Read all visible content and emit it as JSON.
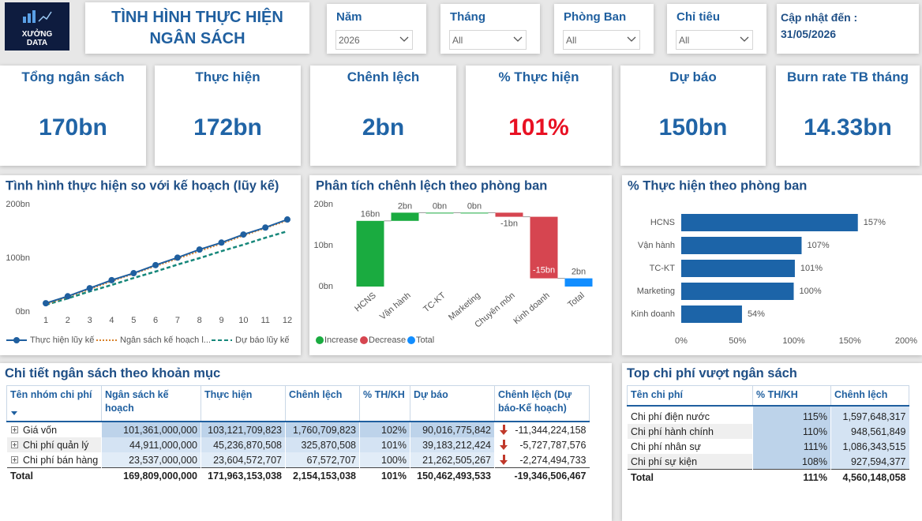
{
  "header": {
    "logo": "XƯỞNG DATA",
    "title": "TÌNH HÌNH THỰC HIỆN NGÂN SÁCH"
  },
  "filters": [
    {
      "label": "Năm",
      "value": "2026"
    },
    {
      "label": "Tháng",
      "value": "All"
    },
    {
      "label": "Phòng Ban",
      "value": "All"
    },
    {
      "label": "Chỉ tiêu",
      "value": "All"
    }
  ],
  "update": {
    "label": "Cập nhật đến :",
    "value": "31/05/2026"
  },
  "kpis": [
    {
      "label": "Tổng ngân sách",
      "value": "170bn",
      "color": "#2064a6"
    },
    {
      "label": "Thực hiện",
      "value": "172bn",
      "color": "#2064a6"
    },
    {
      "label": "Chênh lệch",
      "value": "2bn",
      "color": "#2064a6"
    },
    {
      "label": "% Thực hiện",
      "value": "101%",
      "color": "#e81123"
    },
    {
      "label": "Dự báo",
      "value": "150bn",
      "color": "#2064a6"
    },
    {
      "label": "Burn rate TB tháng",
      "value": "14.33bn",
      "color": "#2064a6"
    }
  ],
  "chart_data": [
    {
      "type": "line",
      "title": "Tình hình thực hiện so với kế hoạch (lũy kế)",
      "x": [
        1,
        2,
        3,
        4,
        5,
        6,
        7,
        8,
        9,
        10,
        11,
        12
      ],
      "xlim": [
        1,
        12
      ],
      "xticks": [
        1,
        2,
        3,
        4,
        5,
        6,
        7,
        8,
        9,
        10,
        11,
        12
      ],
      "ylim": [
        0,
        200
      ],
      "yticks": [
        {
          "value": 0,
          "label": "0bn"
        },
        {
          "value": 100,
          "label": "100bn"
        },
        {
          "value": 200,
          "label": "200bn"
        }
      ],
      "series": [
        {
          "name": "Thực hiện lũy kế",
          "color": "#1f5f9f",
          "line_style": "solid",
          "markers": true,
          "values": [
            16,
            29,
            44,
            59,
            72,
            87,
            101,
            116,
            129,
            144,
            157,
            172
          ]
        },
        {
          "name": "Ngân sách kế hoạch l...",
          "color": "#d9822b",
          "line_style": "dotted",
          "markers": false,
          "values": [
            14,
            28,
            42,
            57,
            71,
            85,
            99,
            113,
            127,
            142,
            156,
            170
          ]
        },
        {
          "name": "Dự báo lũy kế",
          "color": "#16877a",
          "line_style": "dashed",
          "markers": false,
          "values": [
            13,
            25,
            38,
            50,
            63,
            75,
            88,
            100,
            113,
            125,
            138,
            150
          ]
        }
      ]
    },
    {
      "type": "waterfall",
      "title": "Phân tích chênh lệch theo phòng ban",
      "categories": [
        "HCNS",
        "Vận hành",
        "TC-KT",
        "Marketing",
        "Chuyên môn",
        "Kinh doanh",
        "Total"
      ],
      "values": [
        16,
        2,
        0,
        0,
        -1,
        -15,
        2
      ],
      "value_labels": [
        "16bn",
        "2bn",
        "0bn",
        "0bn",
        "-1bn",
        "-15bn",
        "2bn"
      ],
      "ylim": [
        0,
        20
      ],
      "yticks": [
        {
          "value": 0,
          "label": "0bn"
        },
        {
          "value": 10,
          "label": "10bn"
        },
        {
          "value": 20,
          "label": "20bn"
        }
      ],
      "legend": [
        {
          "name": "Increase",
          "color": "#1aab40"
        },
        {
          "name": "Decrease",
          "color": "#d64550"
        },
        {
          "name": "Total",
          "color": "#118dff"
        }
      ]
    },
    {
      "type": "hbar",
      "title": "% Thực hiện theo phòng ban",
      "categories": [
        "HCNS",
        "Vận hành",
        "TC-KT",
        "Marketing",
        "Kinh doanh"
      ],
      "values": [
        157,
        107,
        101,
        100,
        54
      ],
      "value_labels": [
        "157%",
        "107%",
        "101%",
        "100%",
        "54%"
      ],
      "color": "#1c64a8",
      "xlim": [
        0,
        200
      ],
      "xticks": [
        {
          "value": 0,
          "label": "0%"
        },
        {
          "value": 50,
          "label": "50%"
        },
        {
          "value": 100,
          "label": "100%"
        },
        {
          "value": 150,
          "label": "150%"
        },
        {
          "value": 200,
          "label": "200%"
        }
      ]
    }
  ],
  "tables": [
    {
      "title": "Chi tiết ngân sách theo khoản mục",
      "columns": [
        "Tên nhóm chi phí",
        "Ngân sách kế hoạch",
        "Thực hiện",
        "Chênh lệch",
        "% TH/KH",
        "Dự báo",
        "Chênh lệch (Dự báo-Kế hoạch)"
      ],
      "rows": [
        [
          "Giá vốn",
          "101,361,000,000",
          "103,121,709,823",
          "1,760,709,823",
          "102%",
          "90,016,775,842",
          "-11,344,224,158"
        ],
        [
          "Chi phí quản lý",
          "44,911,000,000",
          "45,236,870,508",
          "325,870,508",
          "101%",
          "39,183,212,424",
          "-5,727,787,576"
        ],
        [
          "Chi phí bán hàng",
          "23,537,000,000",
          "23,604,572,707",
          "67,572,707",
          "100%",
          "21,262,505,267",
          "-2,274,494,733"
        ]
      ],
      "total": [
        "Total",
        "169,809,000,000",
        "171,963,153,038",
        "2,154,153,038",
        "101%",
        "150,462,493,533",
        "-19,346,506,467"
      ]
    },
    {
      "title": "Top chi phí vượt ngân sách",
      "columns": [
        "Tên chi phí",
        "% TH/KH",
        "Chênh lệch"
      ],
      "rows": [
        [
          "Chi phí điện nước",
          "115%",
          "1,597,648,317"
        ],
        [
          "Chi phí hành chính",
          "110%",
          "948,561,849"
        ],
        [
          "Chi phí nhân sự",
          "111%",
          "1,086,343,515"
        ],
        [
          "Chi phí sự kiện",
          "108%",
          "927,594,377"
        ]
      ],
      "total": [
        "Total",
        "111%",
        "4,560,148,058"
      ]
    }
  ]
}
